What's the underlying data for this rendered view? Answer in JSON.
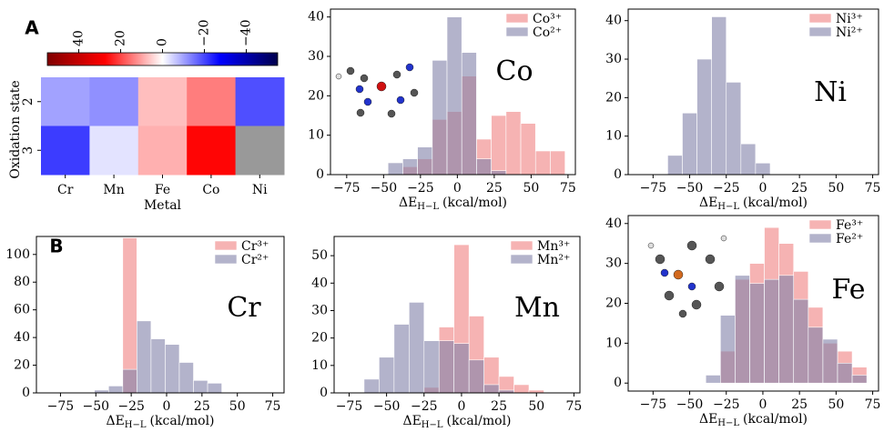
{
  "panel_labels": [
    "A",
    "B"
  ],
  "chart_data": [
    {
      "type": "heatmap",
      "x": [
        "Cr",
        "Mn",
        "Fe",
        "Co",
        "Ni"
      ],
      "y": [
        "2",
        "3"
      ],
      "values": [
        [
          -10,
          -12,
          7,
          14,
          -19
        ],
        [
          -21,
          -3,
          8.5,
          27,
          null
        ]
      ],
      "xlabel": "Metal",
      "ylabel": "Oxidation state",
      "colormap": "seismic_r",
      "vlim": [
        -55,
        55
      ],
      "cticks": [
        40,
        20,
        0,
        {
          "value": -20,
          "label": "−20"
        },
        {
          "value": -40,
          "label": "−40"
        }
      ],
      "missing_color": "#999999"
    },
    {
      "type": "histogram",
      "annotation": "Co",
      "bins": [
        -47,
        -37,
        -27,
        -17,
        -7,
        3,
        13,
        23,
        33,
        43,
        53,
        63,
        73
      ],
      "series": [
        {
          "name": "Co³⁺",
          "color": "#f08080",
          "values": [
            0,
            2,
            4,
            14,
            16,
            25,
            9,
            15,
            16,
            13,
            6,
            6
          ]
        },
        {
          "name": "Co²⁺",
          "color": "#8080a8",
          "values": [
            3,
            4,
            7,
            29,
            40,
            31,
            4,
            1,
            0,
            0,
            0,
            0
          ]
        }
      ],
      "xlim": [
        -86,
        80
      ],
      "ylim": [
        0,
        42
      ],
      "xticks": [
        {
          "value": -75,
          "label": "−75"
        },
        {
          "value": -50,
          "label": "−50"
        },
        {
          "value": -25,
          "label": "−25"
        },
        0,
        25,
        50,
        75
      ],
      "yticks": [
        0,
        10,
        20,
        30,
        40
      ],
      "xlabel": [
        "ΔE",
        "H−L",
        "(kcal/mol)"
      ]
    },
    {
      "type": "histogram",
      "annotation": "Ni",
      "bins": [
        -65,
        -55,
        -45,
        -35,
        -25,
        -15,
        -5,
        5
      ],
      "series": [
        {
          "name": "Ni³⁺",
          "color": "#f08080",
          "values": [
            0,
            0,
            0,
            0,
            0,
            0,
            0
          ]
        },
        {
          "name": "Ni²⁺",
          "color": "#8080a8",
          "values": [
            5,
            16,
            30,
            41,
            24,
            8,
            3
          ]
        }
      ],
      "xlim": [
        -92,
        79
      ],
      "ylim": [
        0,
        43
      ],
      "xticks": [
        {
          "value": -75,
          "label": "−75"
        },
        {
          "value": -50,
          "label": "−50"
        },
        {
          "value": -25,
          "label": "−25"
        },
        0,
        25,
        50,
        75
      ],
      "yticks": [
        0,
        10,
        20,
        30,
        40
      ],
      "xlabel": [
        "ΔE",
        "H−L",
        "(kcal/mol)"
      ]
    },
    {
      "type": "histogram",
      "annotation": "Cr",
      "bins": [
        -51,
        -41,
        -31,
        -21,
        -11,
        -1,
        9,
        19,
        29,
        39
      ],
      "series": [
        {
          "name": "Cr³⁺",
          "color": "#f08080",
          "values": [
            0,
            0,
            112,
            0,
            0,
            0,
            0,
            0,
            0
          ]
        },
        {
          "name": "Cr²⁺",
          "color": "#8080a8",
          "values": [
            2,
            5,
            17,
            52,
            39,
            35,
            22,
            9,
            7
          ]
        }
      ],
      "xlim": [
        -92,
        83
      ],
      "ylim": [
        0,
        113
      ],
      "xticks": [
        {
          "value": -75,
          "label": "−75"
        },
        {
          "value": -50,
          "label": "−50"
        },
        {
          "value": -25,
          "label": "−25"
        },
        0,
        25,
        50,
        75
      ],
      "yticks": [
        0,
        20,
        40,
        60,
        80,
        100
      ],
      "xlabel": [
        "ΔE",
        "H−L",
        "(kcal/mol)"
      ]
    },
    {
      "type": "histogram",
      "annotation": "Mn",
      "bins": [
        -65,
        -55,
        -45,
        -35,
        -25,
        -15,
        -5,
        5,
        15,
        25,
        35,
        45,
        55
      ],
      "series": [
        {
          "name": "Mn³⁺",
          "color": "#f08080",
          "values": [
            0,
            0,
            0,
            0,
            2,
            24,
            54,
            28,
            13,
            6,
            3,
            1
          ]
        },
        {
          "name": "Mn²⁺",
          "color": "#8080a8",
          "values": [
            5,
            13,
            25,
            33,
            19,
            19,
            18,
            12,
            3,
            1,
            0,
            0
          ]
        }
      ],
      "xlim": [
        -85,
        79
      ],
      "ylim": [
        0,
        57
      ],
      "xticks": [
        {
          "value": -75,
          "label": "−75"
        },
        {
          "value": -50,
          "label": "−50"
        },
        {
          "value": -25,
          "label": "−25"
        },
        0,
        25,
        50,
        75
      ],
      "yticks": [
        0,
        10,
        20,
        30,
        40,
        50
      ],
      "xlabel": [
        "ΔE",
        "H−L",
        "(kcal/mol)"
      ]
    },
    {
      "type": "histogram",
      "annotation": "Fe",
      "bins": [
        -39,
        -29,
        -19,
        -9,
        1,
        11,
        21,
        31,
        41,
        51,
        61,
        71
      ],
      "series": [
        {
          "name": "Fe³⁺",
          "color": "#f08080",
          "values": [
            0,
            8,
            26,
            30,
            39,
            35,
            28,
            19,
            10,
            8,
            4
          ]
        },
        {
          "name": "Fe²⁺",
          "color": "#8080a8",
          "values": [
            2,
            17,
            27,
            25,
            26,
            27,
            21,
            14,
            11,
            5,
            2
          ]
        }
      ],
      "xlim": [
        -92,
        79
      ],
      "ylim": [
        -2,
        42
      ],
      "xticks": [
        {
          "value": -75,
          "label": "−75"
        },
        {
          "value": -50,
          "label": "−50"
        },
        {
          "value": -25,
          "label": "−25"
        },
        0,
        25,
        50,
        75
      ],
      "yticks": [
        0,
        10,
        20,
        30,
        40
      ],
      "xlabel": [
        "ΔE",
        "H−L",
        "(kcal/mol)"
      ]
    }
  ]
}
